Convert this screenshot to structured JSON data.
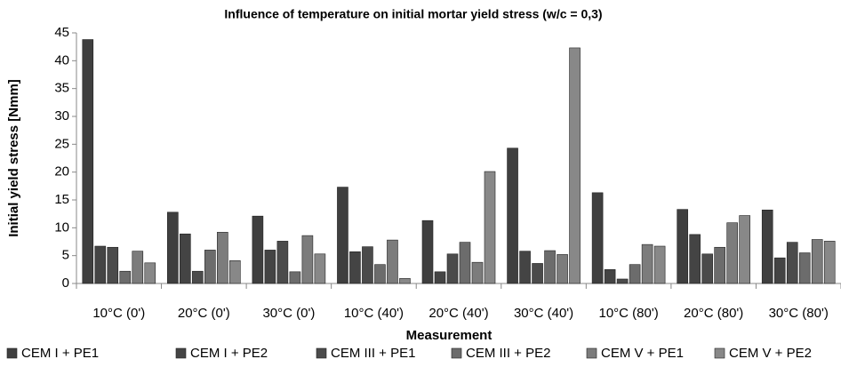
{
  "chart_data": {
    "type": "bar",
    "title": "Influence of temperature on initial mortar yield stress (w/c = 0,3)",
    "x_label": "Measurement",
    "y_label": "Initial yield stress [Nmm]",
    "categories": [
      "10°C (0')",
      "20°C (0')",
      "30°C (0')",
      "10°C (40')",
      "20°C (40')",
      "30°C (40')",
      "10°C (80')",
      "20°C (80')",
      "30°C (80')"
    ],
    "series": [
      {
        "name": "CEM I + PE1",
        "color": "#3f3f3f",
        "values": [
          43.8,
          12.8,
          12.1,
          17.3,
          11.3,
          24.3,
          16.3,
          13.3,
          13.2
        ]
      },
      {
        "name": "CEM I + PE2",
        "color": "#444444",
        "values": [
          6.7,
          8.9,
          6.0,
          5.7,
          2.1,
          5.8,
          2.5,
          8.8,
          4.6
        ]
      },
      {
        "name": "CEM III + PE1",
        "color": "#4b4b4b",
        "values": [
          6.5,
          2.2,
          7.6,
          6.6,
          5.3,
          3.6,
          0.8,
          5.3,
          7.4
        ]
      },
      {
        "name": "CEM III + PE2",
        "color": "#6c6c6c",
        "values": [
          2.2,
          6.0,
          2.1,
          3.4,
          7.4,
          5.9,
          3.4,
          6.5,
          5.5
        ]
      },
      {
        "name": "CEM V + PE1",
        "color": "#7c7c7c",
        "values": [
          5.8,
          9.2,
          8.6,
          7.8,
          3.8,
          5.2,
          7.0,
          10.9,
          7.9
        ]
      },
      {
        "name": "CEM V + PE2",
        "color": "#888888",
        "values": [
          3.7,
          4.1,
          5.3,
          0.9,
          20.1,
          42.3,
          6.7,
          12.2,
          7.6
        ]
      }
    ],
    "ylim": [
      0,
      45
    ],
    "yticks": [
      0,
      5,
      10,
      15,
      20,
      25,
      30,
      35,
      40,
      45
    ],
    "grid": false,
    "legend": "bottom"
  }
}
